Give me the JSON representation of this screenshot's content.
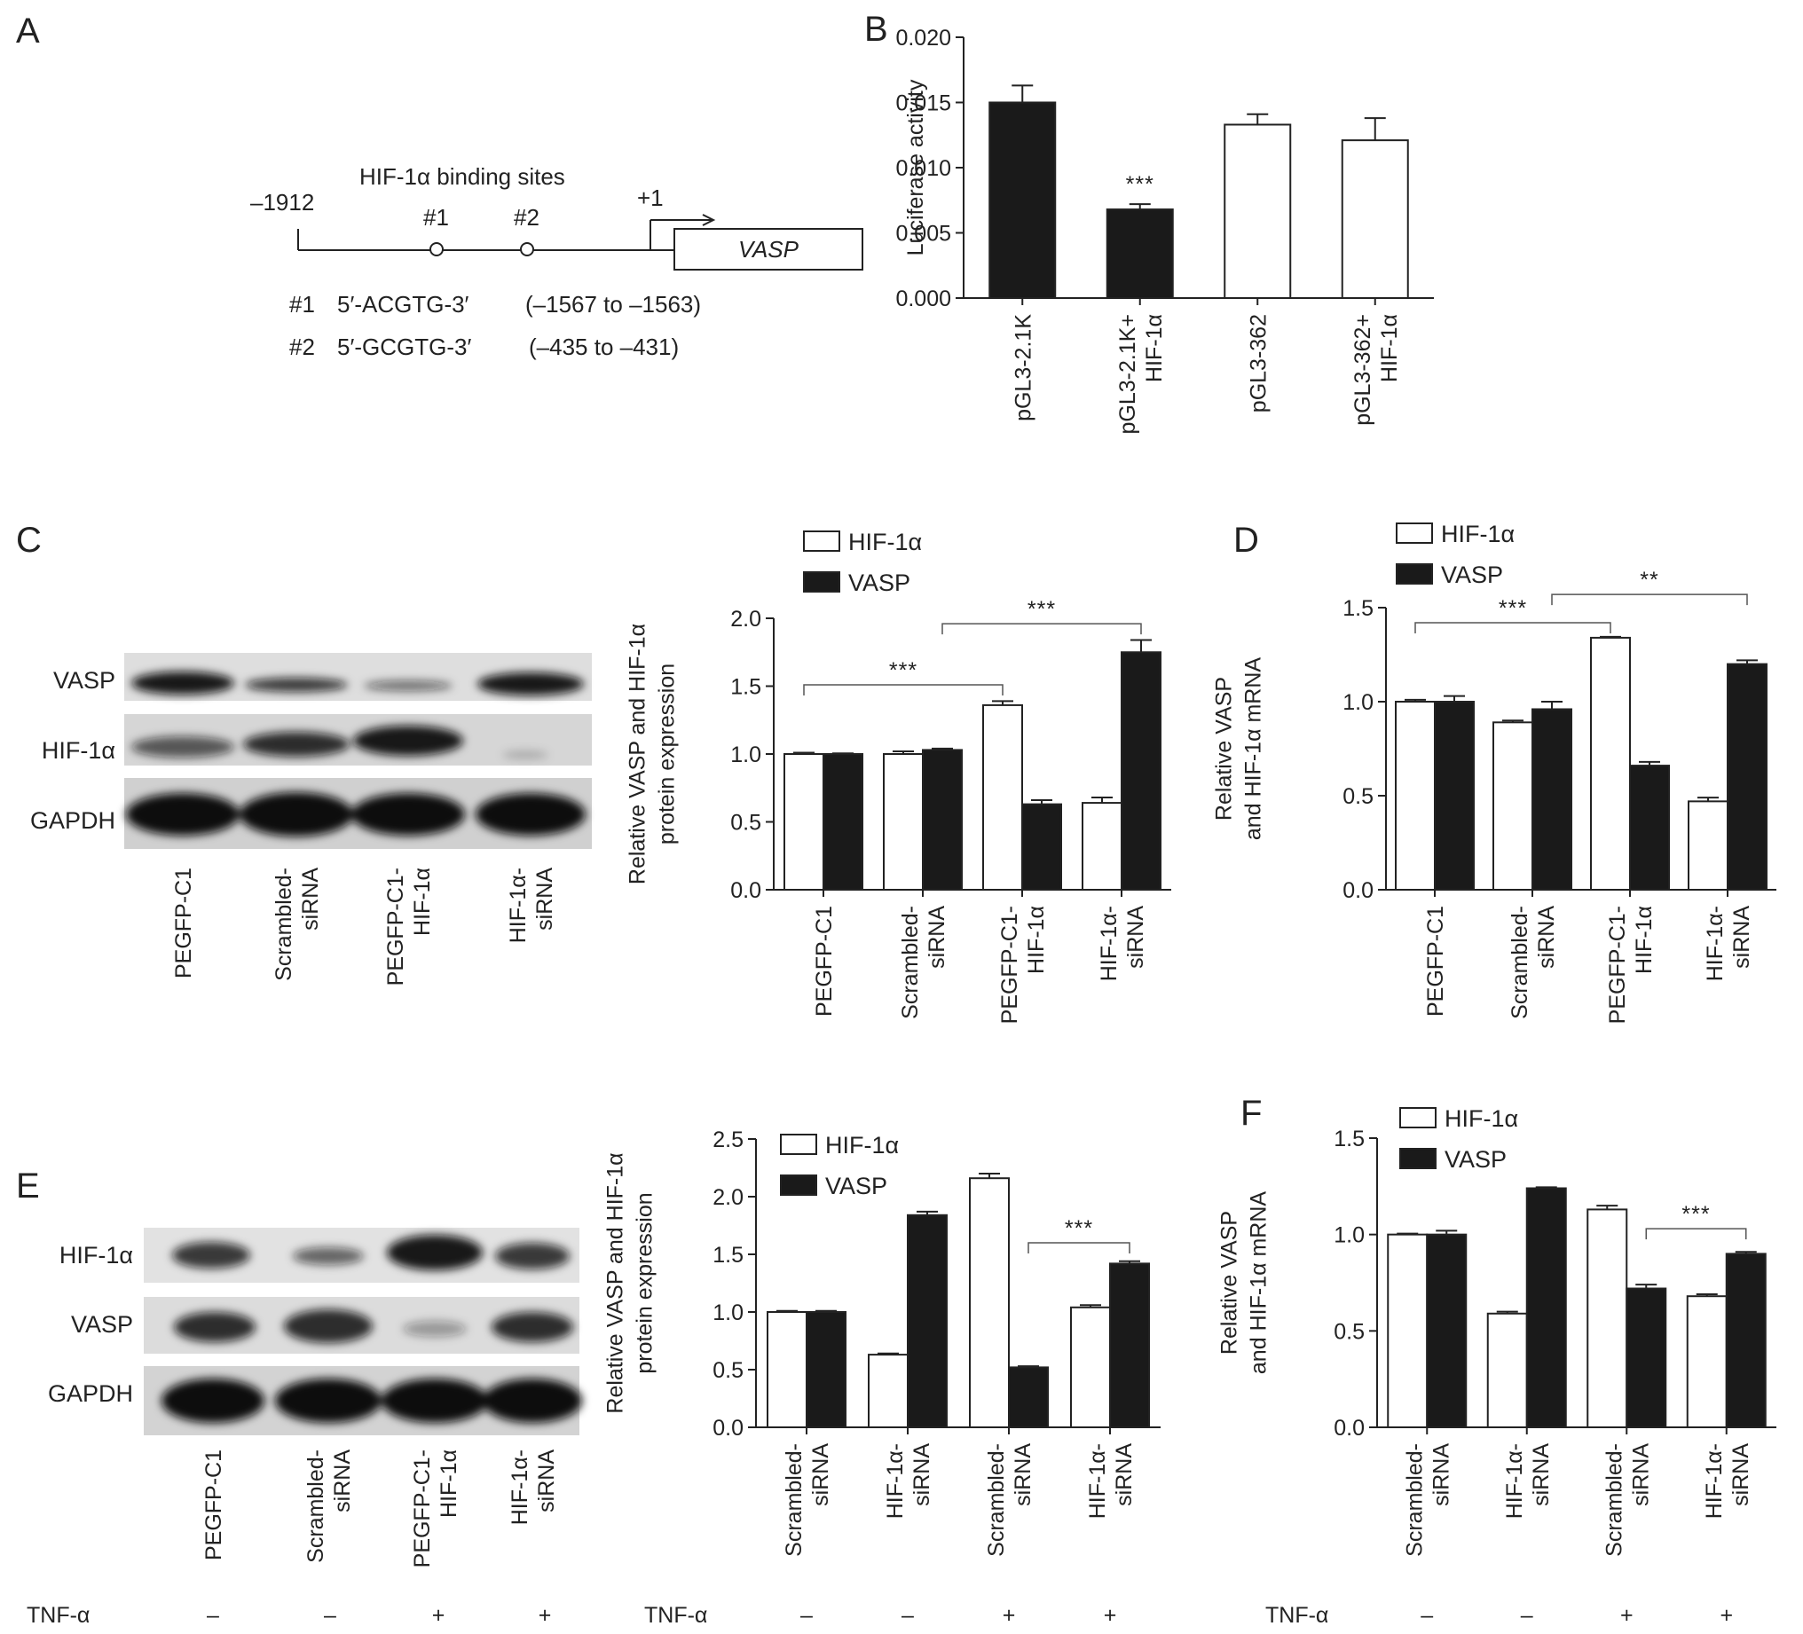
{
  "panels": {
    "A": {
      "letter": "A",
      "title": "HIF-1α binding sites",
      "start": "–1912",
      "site1": "#1",
      "site2": "#2",
      "tss": "+1",
      "gene": "VASP",
      "seq1_id": "#1",
      "seq1": "5′-ACGTG-3′",
      "seq1_range": "(–1567 to –1563)",
      "seq2_id": "#2",
      "seq2": "5′-GCGTG-3′",
      "seq2_range": "(–435 to –431)"
    },
    "C": {
      "letter": "C",
      "blot_labels": [
        "VASP",
        "HIF-1α",
        "GAPDH"
      ],
      "lanes": [
        "PEGFP-C1",
        "Scrambled-\nsiRNA",
        "PEGFP-C1-\nHIF-1α",
        "HIF-1α-\nsiRNA"
      ]
    },
    "D": {
      "letter": "D"
    },
    "E": {
      "letter": "E",
      "blot_labels": [
        "HIF-1α",
        "VASP",
        "GAPDH"
      ],
      "lanes": [
        "PEGFP-C1",
        "Scrambled-\nsiRNA",
        "PEGFP-C1-\nHIF-1α",
        "HIF-1α-\nsiRNA"
      ],
      "tnf_label": "TNF-α",
      "tnf_signs": [
        "–",
        "–",
        "+",
        "+"
      ]
    },
    "F": {
      "letter": "F"
    }
  },
  "colors": {
    "filled": "#1a1a1a",
    "open": "#ffffff",
    "stroke": "#222222"
  },
  "chart_data": [
    {
      "id": "B",
      "letter": "B",
      "type": "bar",
      "categories": [
        "pGL3-2.1K",
        "pGL3-2.1K+\nHIF-1α",
        "pGL3-362",
        "pGL3-362+\nHIF-1α"
      ],
      "values": [
        0.015,
        0.0068,
        0.0133,
        0.0121
      ],
      "errors": [
        0.0013,
        0.0004,
        0.0008,
        0.0017
      ],
      "fills": [
        "filled",
        "filled",
        "open",
        "open"
      ],
      "ylabel": "Luciferase activity",
      "ylim": [
        0,
        0.02
      ],
      "yticks": [
        "0.000",
        "0.005",
        "0.010",
        "0.015",
        "0.020"
      ],
      "annotations": [
        {
          "text": "***",
          "index": 1
        }
      ]
    },
    {
      "id": "C",
      "type": "bar",
      "categories": [
        "PEGFP-C1",
        "Scrambled-\nsiRNA",
        "PEGFP-C1-\nHIF-1α",
        "HIF-1α-\nsiRNA"
      ],
      "series": [
        {
          "name": "HIF-1α",
          "values": [
            1.0,
            1.0,
            1.36,
            0.64
          ],
          "errors": [
            0.01,
            0.02,
            0.03,
            0.04
          ]
        },
        {
          "name": "VASP",
          "values": [
            1.0,
            1.03,
            0.63,
            1.75
          ],
          "errors": [
            0.005,
            0.01,
            0.03,
            0.09
          ]
        }
      ],
      "ylabel": "Relative VASP and HIF-1α\nprotein expression",
      "ylim": [
        0,
        2.0
      ],
      "yticks": [
        "0.0",
        "0.5",
        "1.0",
        "1.5",
        "2.0"
      ],
      "legend_position": "top",
      "brackets": [
        {
          "text": "***",
          "from": [
            0,
            0
          ],
          "to": [
            2,
            0
          ],
          "y": 1.51
        },
        {
          "text": "***",
          "from": [
            1,
            1
          ],
          "to": [
            3,
            1
          ],
          "y": 1.96
        }
      ]
    },
    {
      "id": "D",
      "type": "bar",
      "categories": [
        "PEGFP-C1",
        "Scrambled-\nsiRNA",
        "PEGFP-C1-\nHIF-1α",
        "HIF-1α-\nsiRNA"
      ],
      "series": [
        {
          "name": "HIF-1α",
          "values": [
            1.0,
            0.89,
            1.34,
            0.47
          ],
          "errors": [
            0.01,
            0.01,
            0.005,
            0.02
          ]
        },
        {
          "name": "VASP",
          "values": [
            1.0,
            0.96,
            0.66,
            1.2
          ],
          "errors": [
            0.03,
            0.04,
            0.02,
            0.02
          ]
        }
      ],
      "ylabel": "Relative VASP\nand HIF-1α mRNA",
      "ylim": [
        0,
        1.5
      ],
      "yticks": [
        "0.0",
        "0.5",
        "1.0",
        "1.5"
      ],
      "legend_position": "top",
      "brackets": [
        {
          "text": "***",
          "from": [
            0,
            0
          ],
          "to": [
            2,
            0
          ],
          "y": 1.42
        },
        {
          "text": "**",
          "from": [
            1,
            1
          ],
          "to": [
            3,
            1
          ],
          "y": 1.57
        }
      ]
    },
    {
      "id": "E",
      "type": "bar",
      "categories": [
        "Scrambled-\nsiRNA",
        "HIF-1α-\nsiRNA",
        "Scrambled-\nsiRNA",
        "HIF-1α-\nsiRNA"
      ],
      "series": [
        {
          "name": "HIF-1α",
          "values": [
            1.0,
            0.63,
            2.16,
            1.04
          ],
          "errors": [
            0.01,
            0.01,
            0.04,
            0.02
          ]
        },
        {
          "name": "VASP",
          "values": [
            1.0,
            1.84,
            0.52,
            1.42
          ],
          "errors": [
            0.01,
            0.03,
            0.01,
            0.02
          ]
        }
      ],
      "ylabel": "Relative VASP and HIF-1α\nprotein expression",
      "ylim": [
        0,
        2.5
      ],
      "yticks": [
        "0.0",
        "0.5",
        "1.0",
        "1.5",
        "2.0",
        "2.5"
      ],
      "legend_position": "top-left",
      "tnf_label": "TNF-α",
      "tnf_signs": [
        "–",
        "–",
        "+",
        "+"
      ],
      "brackets": [
        {
          "text": "***",
          "from": [
            2,
            1
          ],
          "to": [
            3,
            1
          ],
          "y": 1.6
        }
      ]
    },
    {
      "id": "F",
      "type": "bar",
      "categories": [
        "Scrambled-\nsiRNA",
        "HIF-1α-\nsiRNA",
        "Scrambled-\nsiRNA",
        "HIF-1α-\nsiRNA"
      ],
      "series": [
        {
          "name": "HIF-1α",
          "values": [
            1.0,
            0.59,
            1.13,
            0.68
          ],
          "errors": [
            0.005,
            0.01,
            0.02,
            0.01
          ]
        },
        {
          "name": "VASP",
          "values": [
            1.0,
            1.24,
            0.72,
            0.9
          ],
          "errors": [
            0.02,
            0.005,
            0.02,
            0.01
          ]
        }
      ],
      "ylabel": "Relative VASP\nand HIF-1α mRNA",
      "ylim": [
        0,
        1.5
      ],
      "yticks": [
        "0.0",
        "0.5",
        "1.0",
        "1.5"
      ],
      "legend_position": "top-left",
      "tnf_label": "TNF-α",
      "tnf_signs": [
        "–",
        "–",
        "+",
        "+"
      ],
      "brackets": [
        {
          "text": "***",
          "from": [
            2,
            1
          ],
          "to": [
            3,
            1
          ],
          "y": 1.03
        }
      ]
    }
  ]
}
